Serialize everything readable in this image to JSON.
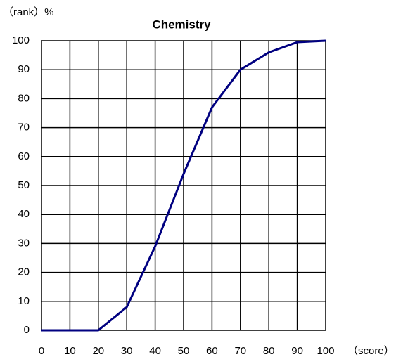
{
  "chart_data": {
    "type": "line",
    "title": "Chemistry",
    "y_label": "（rank）%",
    "x_label": "（score）",
    "x": [
      0,
      10,
      20,
      30,
      40,
      50,
      60,
      70,
      80,
      90,
      100
    ],
    "series": [
      {
        "name": "Chemistry",
        "color": "#000080",
        "values": [
          0,
          0,
          0,
          8,
          29,
          54,
          77,
          90,
          96,
          99.5,
          100
        ]
      }
    ],
    "xlim": [
      0,
      100
    ],
    "ylim": [
      0,
      100
    ],
    "xticks": [
      0,
      10,
      20,
      30,
      40,
      50,
      60,
      70,
      80,
      90,
      100
    ],
    "yticks": [
      0,
      10,
      20,
      30,
      40,
      50,
      60,
      70,
      80,
      90,
      100
    ],
    "grid": true
  }
}
